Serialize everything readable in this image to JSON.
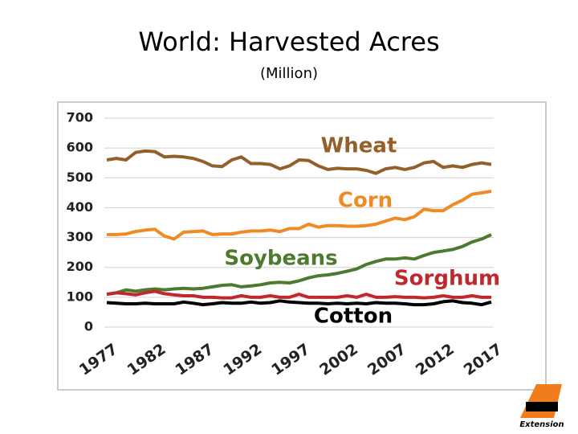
{
  "chart_data": {
    "type": "line",
    "title": "World: Harvested Acres",
    "subtitle": "(Million)",
    "x": [
      1977,
      1978,
      1979,
      1980,
      1981,
      1982,
      1983,
      1984,
      1985,
      1986,
      1987,
      1988,
      1989,
      1990,
      1991,
      1992,
      1993,
      1994,
      1995,
      1996,
      1997,
      1998,
      1999,
      2000,
      2001,
      2002,
      2003,
      2004,
      2005,
      2006,
      2007,
      2008,
      2009,
      2010,
      2011,
      2012,
      2013,
      2014,
      2015,
      2016,
      2017
    ],
    "xlim": [
      1977,
      2017
    ],
    "xticks": [
      1977,
      1982,
      1987,
      1992,
      1997,
      2002,
      2007,
      2012,
      2017
    ],
    "ylim": [
      0,
      700
    ],
    "yticks": [
      0,
      100,
      200,
      300,
      400,
      500,
      600,
      700
    ],
    "grid": true,
    "series": [
      {
        "name": "Wheat",
        "color": "#94602a",
        "values": [
          560,
          565,
          560,
          585,
          590,
          588,
          570,
          572,
          570,
          565,
          555,
          540,
          538,
          560,
          570,
          548,
          548,
          545,
          530,
          540,
          560,
          558,
          540,
          528,
          532,
          530,
          530,
          525,
          515,
          530,
          535,
          528,
          535,
          550,
          555,
          535,
          540,
          535,
          545,
          550,
          545
        ]
      },
      {
        "name": "Corn",
        "color": "#f08a24",
        "values": [
          310,
          310,
          312,
          320,
          325,
          328,
          305,
          295,
          318,
          320,
          322,
          310,
          312,
          312,
          318,
          322,
          322,
          325,
          320,
          330,
          330,
          345,
          335,
          340,
          340,
          338,
          338,
          340,
          345,
          355,
          365,
          360,
          370,
          395,
          390,
          390,
          410,
          425,
          445,
          450,
          455
        ]
      },
      {
        "name": "Soybeans",
        "color": "#4d7a2e",
        "values": [
          110,
          115,
          125,
          120,
          125,
          128,
          125,
          128,
          130,
          128,
          130,
          135,
          140,
          142,
          135,
          138,
          142,
          148,
          150,
          148,
          155,
          165,
          172,
          175,
          180,
          187,
          195,
          210,
          220,
          228,
          228,
          232,
          228,
          240,
          250,
          255,
          260,
          270,
          285,
          295,
          310
        ]
      },
      {
        "name": "Sorghum",
        "color": "#c0282d",
        "values": [
          110,
          115,
          112,
          108,
          115,
          120,
          112,
          108,
          105,
          105,
          100,
          100,
          98,
          98,
          105,
          100,
          100,
          105,
          100,
          100,
          110,
          100,
          100,
          100,
          100,
          105,
          100,
          110,
          100,
          100,
          102,
          100,
          100,
          98,
          100,
          105,
          100,
          100,
          105,
          100,
          100
        ]
      },
      {
        "name": "Cotton",
        "color": "#000000",
        "values": [
          82,
          80,
          78,
          78,
          80,
          78,
          78,
          78,
          84,
          80,
          75,
          78,
          82,
          80,
          80,
          84,
          80,
          82,
          88,
          84,
          82,
          80,
          80,
          78,
          80,
          78,
          80,
          78,
          82,
          80,
          80,
          78,
          75,
          75,
          78,
          85,
          88,
          82,
          80,
          75,
          84
        ]
      }
    ],
    "logo": "Extension"
  }
}
